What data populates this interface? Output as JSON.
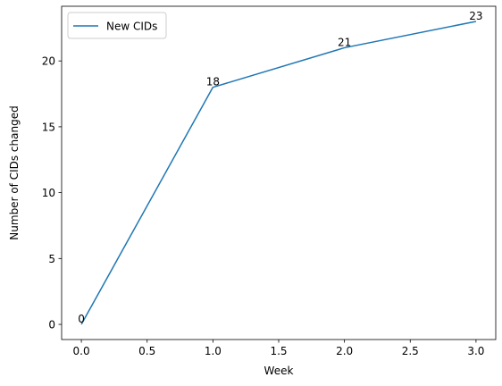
{
  "chart_data": {
    "type": "line",
    "title": "",
    "xlabel": "Week",
    "ylabel": "Number of CIDs changed",
    "xlim": [
      -0.15,
      3.15
    ],
    "ylim": [
      -1.15,
      24.15
    ],
    "xticks": [
      0.0,
      0.5,
      1.0,
      1.5,
      2.0,
      2.5,
      3.0
    ],
    "xtick_labels": [
      "0.0",
      "0.5",
      "1.0",
      "1.5",
      "2.0",
      "2.5",
      "3.0"
    ],
    "yticks": [
      0,
      5,
      10,
      15,
      20
    ],
    "ytick_labels": [
      "0",
      "5",
      "10",
      "15",
      "20"
    ],
    "grid": false,
    "legend": "top-left",
    "series": [
      {
        "name": "New CIDs",
        "color": "#1f77b4",
        "x": [
          0,
          1,
          2,
          3
        ],
        "y": [
          0,
          18,
          21,
          23
        ],
        "point_labels": [
          "0",
          "18",
          "21",
          "23"
        ]
      }
    ]
  }
}
